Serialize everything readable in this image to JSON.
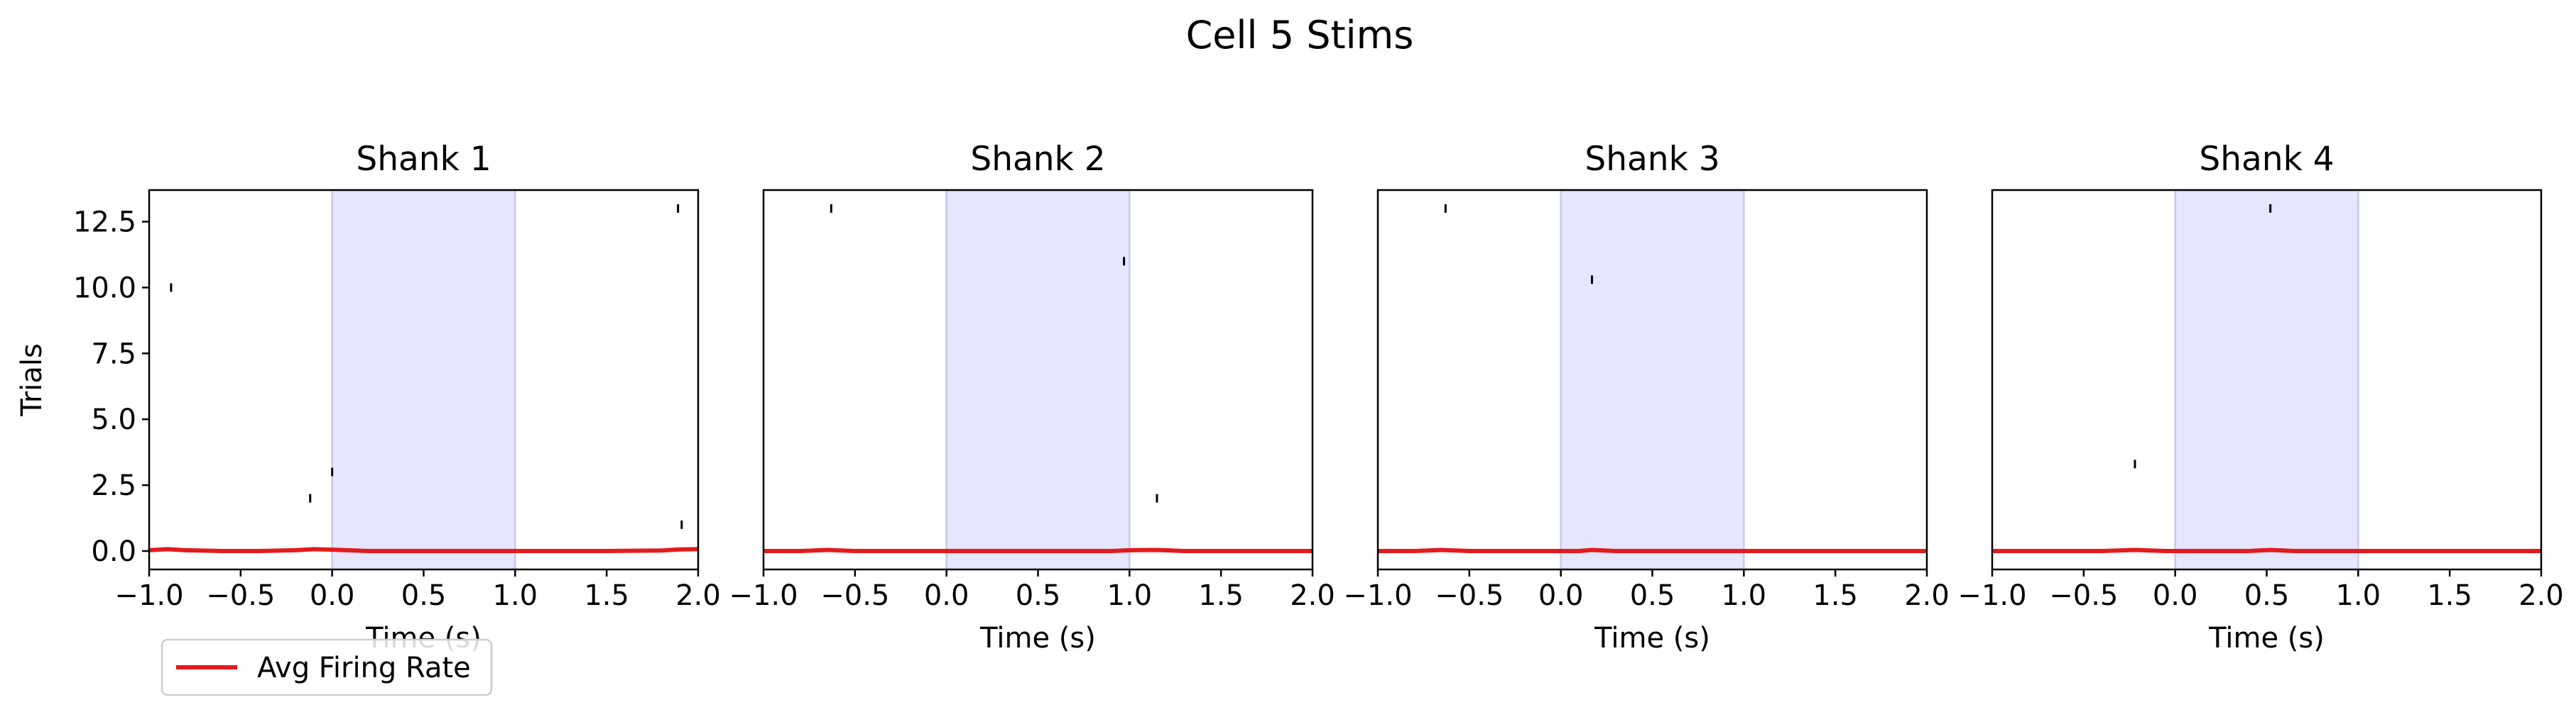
{
  "figure_title": "Cell 5 Stims",
  "legend": {
    "label": "Avg Firing Rate",
    "color": "#e41a1c",
    "placement": "bottom-left"
  },
  "stim_color": "#e6e6ff",
  "chart_data": [
    {
      "type": "raster",
      "title": "Shank 1",
      "xlabel": "Time (s)",
      "ylabel": "Trials",
      "xlim": [
        -1.0,
        2.0
      ],
      "ylim": [
        -0.7,
        13.7
      ],
      "xticks": [
        "−1.0",
        "−0.5",
        "0.0",
        "0.5",
        "1.0",
        "1.5",
        "2.0"
      ],
      "yticks": [
        "0.0",
        "2.5",
        "5.0",
        "7.5",
        "10.0",
        "12.5"
      ],
      "stim_window": [
        0.0,
        1.0
      ],
      "spikes": [
        {
          "t": -0.88,
          "trial": 10
        },
        {
          "t": -0.12,
          "trial": 2
        },
        {
          "t": 0.0,
          "trial": 3
        },
        {
          "t": 1.89,
          "trial": 13
        },
        {
          "t": 1.91,
          "trial": 1
        }
      ],
      "avg_rate": {
        "t": [
          -1.0,
          -0.9,
          -0.8,
          -0.6,
          -0.4,
          -0.2,
          -0.1,
          0.0,
          0.2,
          0.5,
          1.0,
          1.5,
          1.8,
          1.9,
          2.0
        ],
        "y": [
          0.03,
          0.07,
          0.03,
          0.0,
          0.0,
          0.03,
          0.07,
          0.05,
          0.0,
          0.0,
          0.0,
          0.0,
          0.02,
          0.06,
          0.07
        ]
      }
    },
    {
      "type": "raster",
      "title": "Shank 2",
      "xlabel": "Time (s)",
      "xlim": [
        -1.0,
        2.0
      ],
      "ylim": [
        -0.7,
        13.7
      ],
      "xticks": [
        "−1.0",
        "−0.5",
        "0.0",
        "0.5",
        "1.0",
        "1.5",
        "2.0"
      ],
      "stim_window": [
        0.0,
        1.0
      ],
      "spikes": [
        {
          "t": -0.63,
          "trial": 13
        },
        {
          "t": 0.97,
          "trial": 11
        },
        {
          "t": 1.15,
          "trial": 2
        }
      ],
      "avg_rate": {
        "t": [
          -1.0,
          -0.8,
          -0.65,
          -0.5,
          0.0,
          0.9,
          1.0,
          1.15,
          1.3,
          2.0
        ],
        "y": [
          0.0,
          0.0,
          0.04,
          0.0,
          0.0,
          0.0,
          0.03,
          0.04,
          0.0,
          0.0
        ]
      }
    },
    {
      "type": "raster",
      "title": "Shank 3",
      "xlabel": "Time (s)",
      "xlim": [
        -1.0,
        2.0
      ],
      "ylim": [
        -0.7,
        13.7
      ],
      "xticks": [
        "−1.0",
        "−0.5",
        "0.0",
        "0.5",
        "1.0",
        "1.5",
        "2.0"
      ],
      "stim_window": [
        0.0,
        1.0
      ],
      "spikes": [
        {
          "t": -0.63,
          "trial": 13
        },
        {
          "t": 0.17,
          "trial": 10.3
        }
      ],
      "avg_rate": {
        "t": [
          -1.0,
          -0.8,
          -0.65,
          -0.5,
          0.0,
          0.1,
          0.17,
          0.3,
          2.0
        ],
        "y": [
          0.0,
          0.0,
          0.04,
          0.0,
          0.0,
          0.0,
          0.04,
          0.0,
          0.0
        ]
      }
    },
    {
      "type": "raster",
      "title": "Shank 4",
      "xlabel": "Time (s)",
      "xlim": [
        -1.0,
        2.0
      ],
      "ylim": [
        -0.7,
        13.7
      ],
      "xticks": [
        "−1.0",
        "−0.5",
        "0.0",
        "0.5",
        "1.0",
        "1.5",
        "2.0"
      ],
      "stim_window": [
        0.0,
        1.0
      ],
      "spikes": [
        {
          "t": -0.22,
          "trial": 3.3
        },
        {
          "t": 0.52,
          "trial": 13
        }
      ],
      "avg_rate": {
        "t": [
          -1.0,
          -0.4,
          -0.22,
          -0.05,
          0.4,
          0.52,
          0.65,
          2.0
        ],
        "y": [
          0.0,
          0.0,
          0.04,
          0.0,
          0.0,
          0.04,
          0.0,
          0.0
        ]
      }
    }
  ]
}
